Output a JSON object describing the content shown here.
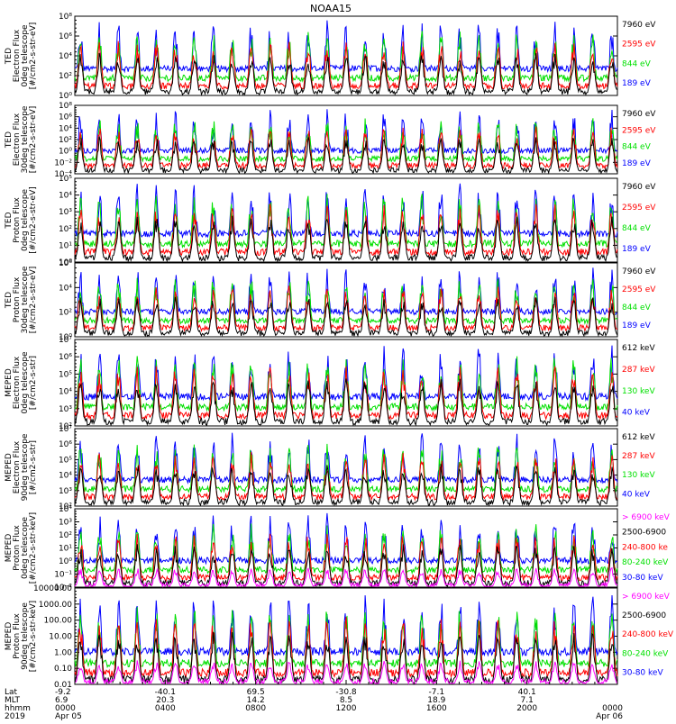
{
  "title": "NOAA15",
  "colors": {
    "black": "#000000",
    "red": "#ff0000",
    "green": "#00e000",
    "blue": "#0000ff",
    "magenta": "#ff00ff"
  },
  "chart_data": [
    {
      "type": "line",
      "ylabel": [
        "TED",
        "Electron Flux",
        "0deg telescope",
        "[#/cm2-s-str-eV]"
      ],
      "ytick_labels": [
        "10⁰",
        "10²",
        "10⁴",
        "10⁶",
        "10⁸"
      ],
      "ylim": [
        0,
        8
      ],
      "series": [
        {
          "name": "7960 eV",
          "color": "black"
        },
        {
          "name": "2595 eV",
          "color": "red"
        },
        {
          "name": "844 eV",
          "color": "green"
        },
        {
          "name": "189 eV",
          "color": "blue"
        }
      ]
    },
    {
      "type": "line",
      "ylabel": [
        "TED",
        "Electron Flux",
        "30deg telescope",
        "[#/cm2-s-str-eV]"
      ],
      "ytick_labels": [
        "10⁻⁴",
        "10⁻²",
        "10⁰",
        "10²",
        "10⁴",
        "10⁶",
        "10⁸"
      ],
      "ylim": [
        -4,
        8
      ],
      "series": [
        {
          "name": "7960 eV",
          "color": "black"
        },
        {
          "name": "2595 eV",
          "color": "red"
        },
        {
          "name": "844 eV",
          "color": "green"
        },
        {
          "name": "189 eV",
          "color": "blue"
        }
      ]
    },
    {
      "type": "line",
      "ylabel": [
        "TED",
        "Proton Flux",
        "0deg telescope",
        "[#/cm2-s-str-eV]"
      ],
      "ytick_labels": [
        "10⁰",
        "10¹",
        "10²",
        "10³",
        "10⁴",
        "10⁵"
      ],
      "ylim": [
        0,
        5
      ],
      "series": [
        {
          "name": "7960 eV",
          "color": "black"
        },
        {
          "name": "2595 eV",
          "color": "red"
        },
        {
          "name": "844 eV",
          "color": "green"
        },
        {
          "name": "189 eV",
          "color": "blue"
        }
      ]
    },
    {
      "type": "line",
      "ylabel": [
        "TED",
        "Proton Flux",
        "30deg telescope",
        "[#/cm2-s-str-eV]"
      ],
      "ytick_labels": [
        "10⁰",
        "10²",
        "10⁴",
        "10⁶"
      ],
      "ylim": [
        0,
        6
      ],
      "series": [
        {
          "name": "7960 eV",
          "color": "black"
        },
        {
          "name": "2595 eV",
          "color": "red"
        },
        {
          "name": "844 eV",
          "color": "green"
        },
        {
          "name": "189 eV",
          "color": "blue"
        }
      ]
    },
    {
      "type": "line",
      "ylabel": [
        "MEPED",
        "Electron Flux",
        "0deg telescope",
        "[#/cm2-s-str]"
      ],
      "ytick_labels": [
        "10²",
        "10³",
        "10⁴",
        "10⁵",
        "10⁶",
        "10⁷"
      ],
      "ylim": [
        2,
        7
      ],
      "series": [
        {
          "name": "612 keV",
          "color": "black"
        },
        {
          "name": "287 keV",
          "color": "red"
        },
        {
          "name": "130 keV",
          "color": "green"
        },
        {
          "name": "40 keV",
          "color": "blue"
        }
      ]
    },
    {
      "type": "line",
      "ylabel": [
        "MEPED",
        "Electron Flux",
        "90deg telescope",
        "[#/cm2-s-str]"
      ],
      "ytick_labels": [
        "10²",
        "10³",
        "10⁴",
        "10⁵",
        "10⁶",
        "10⁷"
      ],
      "ylim": [
        2,
        7
      ],
      "series": [
        {
          "name": "612 keV",
          "color": "black"
        },
        {
          "name": "287 keV",
          "color": "red"
        },
        {
          "name": "130 keV",
          "color": "green"
        },
        {
          "name": "40 keV",
          "color": "blue"
        }
      ]
    },
    {
      "type": "line",
      "ylabel": [
        "MEPED",
        "Proton Flux",
        "0deg telescope",
        "[#/cm2-s-str-keV]"
      ],
      "ytick_labels": [
        "10⁻²",
        "10⁻¹",
        "10⁰",
        "10¹",
        "10²",
        "10³",
        "10⁴"
      ],
      "ylim": [
        -2,
        4
      ],
      "series": [
        {
          "name": "> 6900 keV",
          "color": "magenta"
        },
        {
          "name": "2500-6900",
          "color": "black"
        },
        {
          "name": "240-800 ke",
          "color": "red"
        },
        {
          "name": "80-240 keV",
          "color": "green"
        },
        {
          "name": "30-80 keV",
          "color": "blue"
        }
      ]
    },
    {
      "type": "line",
      "ylabel": [
        "MEPED",
        "Proton Flux",
        "90deg telescope",
        "[#/cm2-s-str-keV]"
      ],
      "ytick_labels": [
        "0.01",
        "0.10",
        "1.00",
        "10.00",
        "100.00",
        "1000.00",
        "10000.00"
      ],
      "ylim": [
        -2,
        4
      ],
      "series": [
        {
          "name": "> 6900 keV",
          "color": "magenta"
        },
        {
          "name": "2500-6900",
          "color": "black"
        },
        {
          "name": "240-800 keV",
          "color": "red"
        },
        {
          "name": "80-240 keV",
          "color": "green"
        },
        {
          "name": "30-80 keV",
          "color": "blue"
        }
      ]
    }
  ],
  "xaxis": {
    "row_labels": [
      "Lat",
      "MLT",
      "hhmm",
      "2019"
    ],
    "xlim_hours": [
      0,
      24
    ],
    "ticks": [
      {
        "hour": 0,
        "lat": "-9.2",
        "mlt": "6.9",
        "hhmm": "0000",
        "date": "Apr 05"
      },
      {
        "hour": 4,
        "lat": "-40.1",
        "mlt": "20.3",
        "hhmm": "0400",
        "date": ""
      },
      {
        "hour": 8,
        "lat": "69.5",
        "mlt": "14.2",
        "hhmm": "0800",
        "date": ""
      },
      {
        "hour": 12,
        "lat": "-30.8",
        "mlt": "8.5",
        "hhmm": "1200",
        "date": ""
      },
      {
        "hour": 16,
        "lat": "-7.1",
        "mlt": "18.9",
        "hhmm": "1600",
        "date": ""
      },
      {
        "hour": 20,
        "lat": "40.1",
        "mlt": "7.1",
        "hhmm": "2000",
        "date": ""
      },
      {
        "hour": 24,
        "lat": "",
        "mlt": "",
        "hhmm": "0000",
        "date": "Apr 06"
      }
    ]
  }
}
